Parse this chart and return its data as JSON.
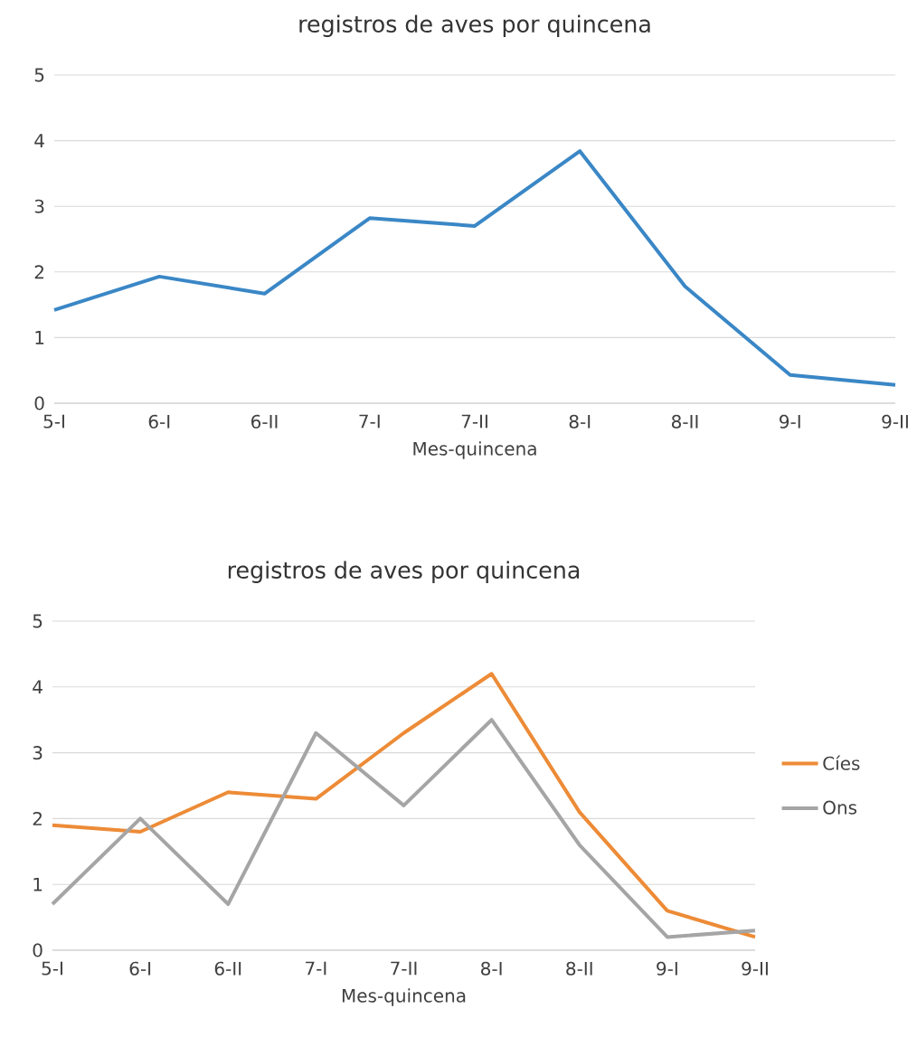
{
  "chart_data": [
    {
      "type": "line",
      "title": "registros de aves por quincena",
      "xlabel": "Mes-quincena",
      "categories": [
        "5-I",
        "6-I",
        "6-II",
        "7-I",
        "7-II",
        "8-I",
        "8-II",
        "9-I",
        "9-II"
      ],
      "ylim": [
        0,
        5
      ],
      "yticks": [
        0,
        1,
        2,
        3,
        4,
        5
      ],
      "grid": "y",
      "line_style": "solid",
      "series": [
        {
          "color": "#3a87c6",
          "values": [
            1.42,
            1.93,
            1.67,
            2.82,
            2.7,
            3.84,
            1.78,
            0.43,
            0.28
          ]
        }
      ]
    },
    {
      "type": "line",
      "title": "registros de aves por quincena",
      "xlabel": "Mes-quincena",
      "categories": [
        "5-I",
        "6-I",
        "6-II",
        "7-I",
        "7-II",
        "8-I",
        "8-II",
        "9-I",
        "9-II"
      ],
      "ylim": [
        0,
        5
      ],
      "yticks": [
        0,
        1,
        2,
        3,
        4,
        5
      ],
      "grid": "y",
      "legend": "right",
      "line_style": "solid",
      "series": [
        {
          "name": "Cíes",
          "color": "#ed8b37",
          "values": [
            1.9,
            1.8,
            2.4,
            2.3,
            3.3,
            4.2,
            2.1,
            0.6,
            0.2
          ]
        },
        {
          "name": "Ons",
          "color": "#a5a5a5",
          "values": [
            0.7,
            2.0,
            0.7,
            3.3,
            2.2,
            3.5,
            1.6,
            0.2,
            0.3
          ]
        }
      ]
    }
  ]
}
